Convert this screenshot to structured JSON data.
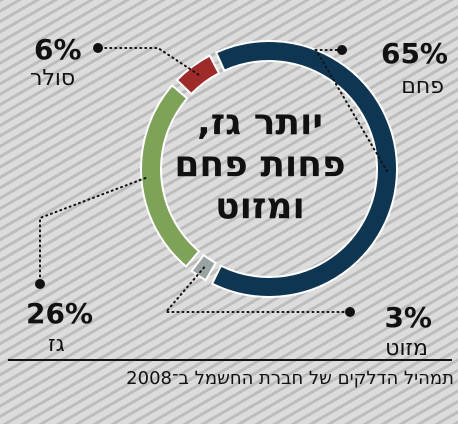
{
  "chart_data": {
    "type": "pie",
    "title_lines": [
      "יותר גז,",
      "פחות פחם",
      "ומזוט"
    ],
    "source": "תמהיל הדלקים של חברת החשמל ב־2008",
    "slices": [
      {
        "label": "פחם",
        "value": 65,
        "display": "65%",
        "color": "#0e3652"
      },
      {
        "label": "מזוט",
        "value": 3,
        "display": "3%",
        "color": "#9aa3a4"
      },
      {
        "label": "גז",
        "value": 26,
        "display": "26%",
        "color": "#7ea257"
      },
      {
        "label": "סולר",
        "value": 6,
        "display": "6%",
        "color": "#9e2a2a"
      }
    ]
  }
}
